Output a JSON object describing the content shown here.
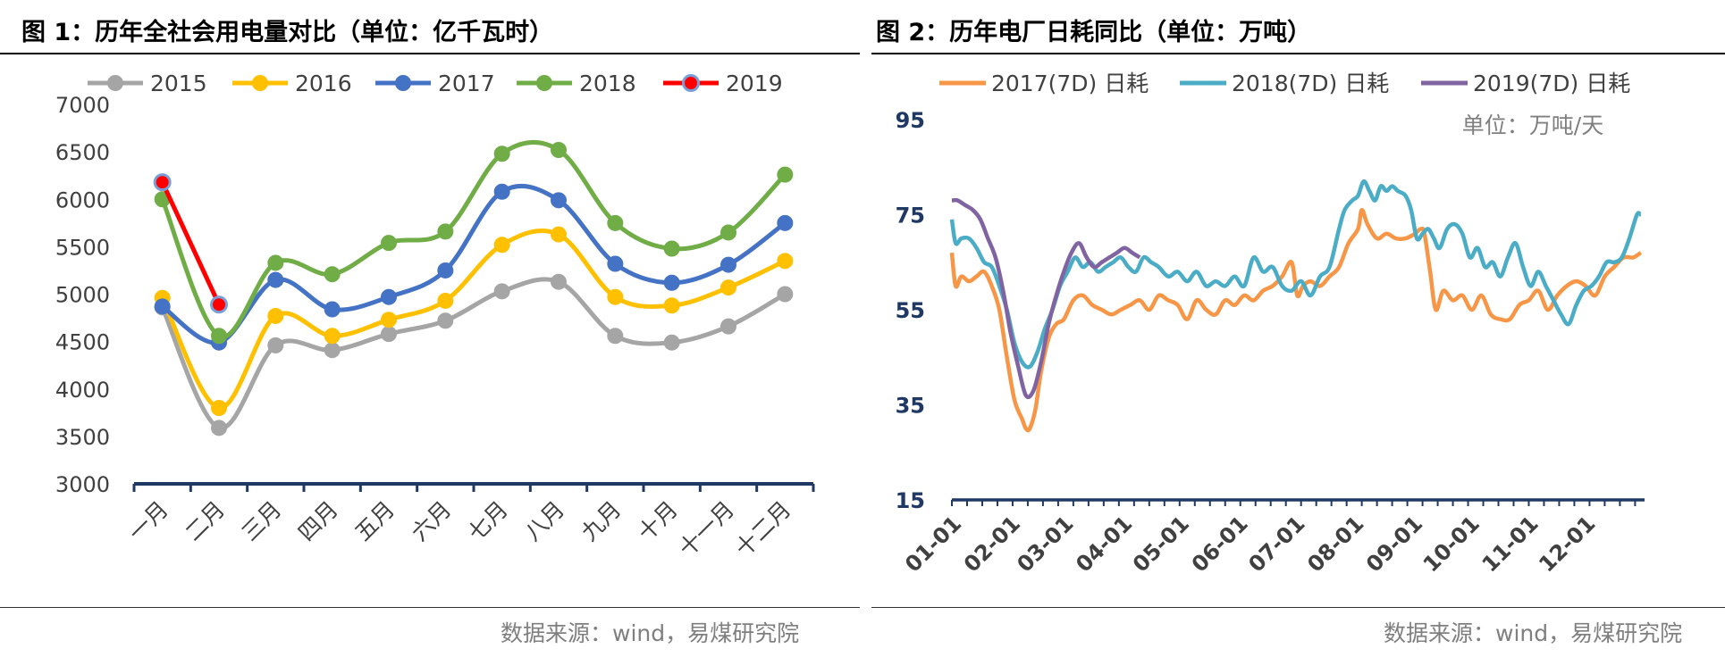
{
  "figure1": {
    "title": "图 1：历年全社会用电量对比（单位：亿千瓦时）",
    "source": "数据来源：wind，易煤研究院"
  },
  "figure2": {
    "title": "图 2：历年电厂日耗同比（单位：万吨）",
    "source": "数据来源：wind，易煤研究院"
  },
  "chart_data": [
    {
      "type": "line",
      "title": "历年全社会用电量对比（单位：亿千瓦时）",
      "xlabel": "",
      "ylabel": "亿千瓦时",
      "ylim": [
        3000,
        7000
      ],
      "yticks": [
        3000,
        3500,
        4000,
        4500,
        5000,
        5500,
        6000,
        6500,
        7000
      ],
      "legend_position": "top",
      "categories": [
        "一月",
        "二月",
        "三月",
        "四月",
        "五月",
        "六月",
        "七月",
        "八月",
        "九月",
        "十月",
        "十一月",
        "十二月"
      ],
      "series": [
        {
          "name": "2015",
          "color": "#a5a5a5",
          "values": [
            4860,
            3590,
            4460,
            4410,
            4580,
            4720,
            5030,
            5130,
            4560,
            4490,
            4660,
            5000
          ]
        },
        {
          "name": "2016",
          "color": "#ffc000",
          "values": [
            4960,
            3800,
            4770,
            4560,
            4730,
            4930,
            5520,
            5630,
            4970,
            4880,
            5070,
            5350
          ]
        },
        {
          "name": "2017",
          "color": "#4472c4",
          "values": [
            4870,
            4490,
            5150,
            4840,
            4970,
            5250,
            6080,
            5990,
            5320,
            5120,
            5310,
            5750
          ]
        },
        {
          "name": "2018",
          "color": "#70ad47",
          "values": [
            6000,
            4560,
            5330,
            5210,
            5540,
            5660,
            6480,
            6520,
            5750,
            5480,
            5650,
            6260
          ]
        },
        {
          "name": "2019",
          "color": "#ff0000",
          "values": [
            6180,
            4890,
            null,
            null,
            null,
            null,
            null,
            null,
            null,
            null,
            null,
            null
          ]
        }
      ]
    },
    {
      "type": "line",
      "title": "历年电厂日耗同比（单位：万吨）",
      "unit_label": "单位：万吨/天",
      "xlabel": "",
      "ylabel": "",
      "ylim": [
        15,
        95
      ],
      "yticks": [
        15,
        35,
        55,
        75,
        95
      ],
      "legend_position": "top",
      "x_tick_labels": [
        "01-01",
        "02-01",
        "03-01",
        "04-01",
        "05-01",
        "06-01",
        "07-01",
        "08-01",
        "09-01",
        "10-01",
        "11-01",
        "12-01"
      ],
      "x_tick_days": [
        1,
        32,
        60,
        91,
        121,
        152,
        182,
        213,
        244,
        274,
        305,
        335
      ],
      "x_range_days": [
        1,
        366
      ],
      "series": [
        {
          "name": "2017(7D) 日耗",
          "color": "#f79646",
          "x": [
            1,
            3,
            6,
            10,
            14,
            18,
            22,
            26,
            30,
            34,
            38,
            40,
            42,
            45,
            48,
            52,
            56,
            60,
            65,
            70,
            75,
            80,
            85,
            90,
            95,
            100,
            105,
            110,
            115,
            120,
            125,
            130,
            135,
            140,
            145,
            150,
            155,
            160,
            165,
            170,
            175,
            180,
            183,
            186,
            190,
            195,
            200,
            205,
            210,
            215,
            217,
            220,
            225,
            230,
            235,
            240,
            245,
            248,
            250,
            253,
            256,
            260,
            265,
            270,
            275,
            280,
            285,
            290,
            295,
            300,
            305,
            310,
            315,
            320,
            325,
            330,
            335,
            340,
            345,
            350,
            355,
            360,
            364
          ],
          "values": [
            67,
            60,
            62,
            61,
            62,
            63,
            60,
            55,
            45,
            36,
            32,
            30,
            30,
            34,
            42,
            49,
            52,
            53,
            57,
            58,
            56,
            55,
            54,
            55,
            56,
            57,
            55,
            58,
            57,
            56,
            53,
            57,
            55,
            54,
            57,
            56,
            58,
            57,
            59,
            60,
            62,
            65,
            58,
            60,
            61,
            60,
            62,
            64,
            69,
            72,
            76,
            73,
            70,
            71,
            70,
            70,
            71,
            72,
            71,
            63,
            55,
            59,
            57,
            58,
            55,
            58,
            54,
            53,
            53,
            56,
            57,
            59,
            55,
            58,
            60,
            61,
            60,
            58,
            62,
            64,
            66,
            66,
            67
          ]
        },
        {
          "name": "2018(7D) 日耗",
          "color": "#4bacc6",
          "x": [
            1,
            3,
            6,
            10,
            14,
            18,
            22,
            26,
            30,
            34,
            38,
            42,
            46,
            50,
            54,
            58,
            62,
            66,
            70,
            74,
            78,
            82,
            86,
            90,
            94,
            98,
            102,
            106,
            110,
            115,
            120,
            125,
            130,
            135,
            140,
            145,
            150,
            155,
            160,
            165,
            170,
            175,
            180,
            185,
            190,
            195,
            200,
            205,
            208,
            212,
            215,
            218,
            221,
            224,
            227,
            230,
            233,
            236,
            240,
            243,
            246,
            249,
            252,
            255,
            258,
            262,
            266,
            270,
            274,
            278,
            282,
            286,
            290,
            294,
            298,
            302,
            306,
            310,
            314,
            318,
            322,
            326,
            330,
            334,
            338,
            342,
            346,
            350,
            354,
            358,
            362,
            364
          ],
          "values": [
            74,
            69,
            70,
            70,
            68,
            65,
            64,
            60,
            55,
            48,
            44,
            43,
            46,
            51,
            55,
            60,
            63,
            66,
            64,
            65,
            63,
            64,
            65,
            66,
            64,
            63,
            66,
            65,
            64,
            62,
            63,
            61,
            63,
            60,
            61,
            60,
            62,
            60,
            66,
            63,
            64,
            60,
            59,
            61,
            58,
            62,
            64,
            72,
            76,
            78,
            79,
            82,
            80,
            78,
            81,
            80,
            81,
            80,
            79,
            76,
            70,
            71,
            72,
            70,
            68,
            72,
            73,
            71,
            66,
            68,
            64,
            65,
            62,
            66,
            69,
            64,
            60,
            63,
            60,
            57,
            54,
            52,
            56,
            59,
            60,
            62,
            65,
            65,
            66,
            70,
            75,
            75
          ]
        },
        {
          "name": "2019(7D) 日耗",
          "color": "#8064a2",
          "x": [
            1,
            4,
            8,
            12,
            16,
            20,
            24,
            28,
            32,
            36,
            40,
            44,
            48,
            52,
            56,
            60,
            64,
            68,
            72,
            76,
            80,
            84,
            88,
            92,
            96,
            100
          ],
          "values": [
            78,
            78,
            77,
            76,
            74,
            70,
            66,
            59,
            50,
            43,
            37,
            38,
            44,
            52,
            58,
            63,
            67,
            69,
            66,
            64,
            65,
            66,
            67,
            68,
            67,
            66
          ]
        }
      ]
    }
  ]
}
